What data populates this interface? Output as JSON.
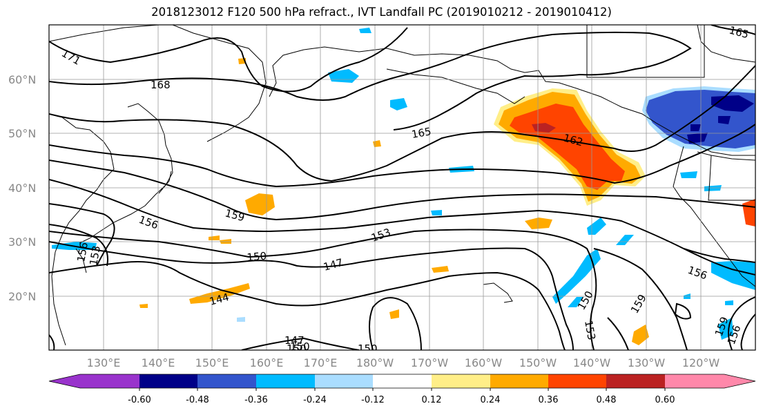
{
  "title": "2018123012 F120 500 hPa refract., IVT Landfall PC (2019010212 - 2019010412)",
  "lon_labels": [
    "130°E",
    "140°E",
    "150°E",
    "160°E",
    "170°E",
    "180°W",
    "170°W",
    "160°W",
    "150°W",
    "140°W",
    "130°W",
    "120°W"
  ],
  "lat_labels": [
    "60°N",
    "50°N",
    "40°N",
    "30°N",
    "20°N"
  ],
  "contour_labels": [
    "171",
    "168",
    "165",
    "162",
    "159",
    "156",
    "153",
    "150",
    "147",
    "144",
    "150",
    "147",
    "150",
    "150",
    "153",
    "156",
    "159",
    "159",
    "156",
    "156",
    "153",
    "150",
    "165"
  ],
  "colorbar": {
    "colors": [
      "#9933cc",
      "#000088",
      "#3355cc",
      "#00bbff",
      "#aaddff",
      "#ffffff",
      "#ffee88",
      "#ffaa00",
      "#ff4400",
      "#bb2222",
      "#ff88aa"
    ],
    "tick_labels": [
      "-0.60",
      "-0.48",
      "-0.36",
      "-0.24",
      "-0.12",
      "0.12",
      "0.24",
      "0.36",
      "0.48",
      "0.60"
    ]
  },
  "legend_colors": {
    "land_outline": "#000000",
    "grid": "#999999",
    "contour": "#000000"
  }
}
